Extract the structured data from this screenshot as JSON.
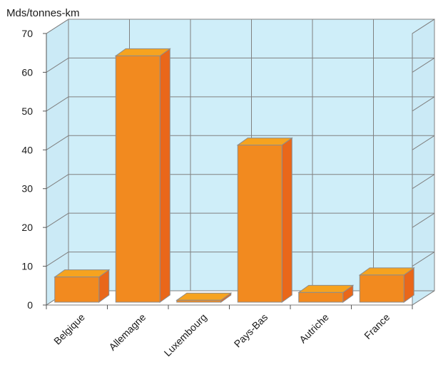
{
  "chart_data": {
    "type": "bar",
    "title": "",
    "ylabel": "Mds/tonnes-km",
    "xlabel": "",
    "ylim": [
      0,
      70
    ],
    "yticks": [
      0,
      10,
      20,
      30,
      40,
      50,
      60,
      70
    ],
    "categories": [
      "Belgique",
      "Allemagne",
      "Luxembourg",
      "Pays-Bas",
      "Autriche",
      "France"
    ],
    "values": [
      6.5,
      63.5,
      0.5,
      40.5,
      2.5,
      7
    ],
    "grid": true,
    "three_d": true,
    "colors": {
      "bar_front": "#f28a1f",
      "bar_side": "#e9671a",
      "bar_top": "#f6a31f",
      "bar_edge": "#8c8c8c",
      "back_wall": "#cfeef9",
      "side_wall": "#cbeaf6",
      "grid": "#808080"
    }
  }
}
